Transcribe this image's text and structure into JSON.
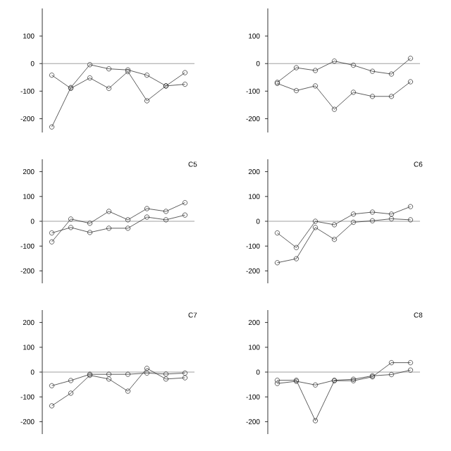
{
  "chart_data": [
    {
      "type": "line",
      "categories": [
        null,
        null,
        null,
        null,
        null,
        null,
        null,
        null
      ],
      "ylim": [
        -250,
        200
      ],
      "yticks": [
        -200,
        -100,
        0,
        100
      ],
      "marker": "circle",
      "ref_lines": [
        {
          "axis": "y",
          "value": 0,
          "color": "#888888"
        }
      ],
      "series": [
        {
          "color": "#333333",
          "values": [
            -230,
            -87,
            -4,
            -19,
            -23,
            -42,
            -81,
            -33
          ]
        },
        {
          "color": "#333333",
          "values": [
            -42,
            -90,
            -52,
            -90,
            -29,
            -135,
            -81,
            -75
          ]
        }
      ]
    },
    {
      "type": "line",
      "categories": [
        null,
        null,
        null,
        null,
        null,
        null,
        null,
        null
      ],
      "ylim": [
        -250,
        200
      ],
      "yticks": [
        -200,
        -100,
        0,
        100
      ],
      "marker": "circle",
      "ref_lines": [
        {
          "axis": "y",
          "value": 0,
          "color": "#888888"
        }
      ],
      "series": [
        {
          "color": "#333333",
          "values": [
            -68,
            -15,
            -25,
            9,
            -6,
            -28,
            -38,
            19
          ]
        },
        {
          "color": "#333333",
          "values": [
            -72,
            -98,
            -81,
            -166,
            -104,
            -119,
            -119,
            -66
          ]
        }
      ]
    },
    {
      "type": "line",
      "annotations": [
        "C5"
      ],
      "categories": [
        null,
        null,
        null,
        null,
        null,
        null,
        null,
        null
      ],
      "ylim": [
        -250,
        250
      ],
      "yticks": [
        -200,
        -100,
        0,
        100,
        200
      ],
      "marker": "circle",
      "ref_lines": [
        {
          "axis": "y",
          "value": 0,
          "color": "#888888"
        }
      ],
      "series": [
        {
          "color": "#333333",
          "values": [
            -83,
            9,
            -8,
            40,
            6,
            51,
            40,
            75
          ]
        },
        {
          "color": "#333333",
          "values": [
            -47,
            -25,
            -45,
            -28,
            -28,
            17,
            6,
            25
          ]
        }
      ]
    },
    {
      "type": "line",
      "annotations": [
        "C6"
      ],
      "categories": [
        null,
        null,
        null,
        null,
        null,
        null,
        null,
        null
      ],
      "ylim": [
        -250,
        250
      ],
      "yticks": [
        -200,
        -100,
        0,
        100,
        200
      ],
      "marker": "circle",
      "ref_lines": [
        {
          "axis": "y",
          "value": 0,
          "color": "#888888"
        }
      ],
      "series": [
        {
          "color": "#333333",
          "values": [
            -47,
            -106,
            0,
            -14,
            29,
            37,
            29,
            59
          ]
        },
        {
          "color": "#333333",
          "values": [
            -167,
            -151,
            -25,
            -73,
            -4,
            2,
            10,
            6
          ]
        }
      ]
    },
    {
      "type": "line",
      "annotations": [
        "C7"
      ],
      "categories": [
        null,
        null,
        null,
        null,
        null,
        null,
        null,
        null
      ],
      "ylim": [
        -250,
        250
      ],
      "yticks": [
        -200,
        -100,
        0,
        100,
        200
      ],
      "marker": "circle",
      "ref_lines": [
        {
          "axis": "y",
          "value": 0,
          "color": "#888888"
        }
      ],
      "series": [
        {
          "color": "#333333",
          "values": [
            -136,
            -85,
            -13,
            -28,
            -77,
            15,
            -28,
            -23
          ]
        },
        {
          "color": "#333333",
          "values": [
            -55,
            -34,
            -9,
            -9,
            -9,
            -4,
            -8,
            -4
          ]
        }
      ]
    },
    {
      "type": "line",
      "annotations": [
        "C8"
      ],
      "categories": [
        null,
        null,
        null,
        null,
        null,
        null,
        null,
        null
      ],
      "ylim": [
        -250,
        250
      ],
      "yticks": [
        -200,
        -100,
        0,
        100,
        200
      ],
      "marker": "circle",
      "ref_lines": [
        {
          "axis": "y",
          "value": 0,
          "color": "#888888"
        }
      ],
      "series": [
        {
          "color": "#333333",
          "values": [
            -33,
            -33,
            -196,
            -35,
            -35,
            -19,
            38,
            38
          ]
        },
        {
          "color": "#333333",
          "values": [
            -46,
            -37,
            -52,
            -33,
            -29,
            -15,
            -10,
            8
          ]
        }
      ]
    }
  ]
}
